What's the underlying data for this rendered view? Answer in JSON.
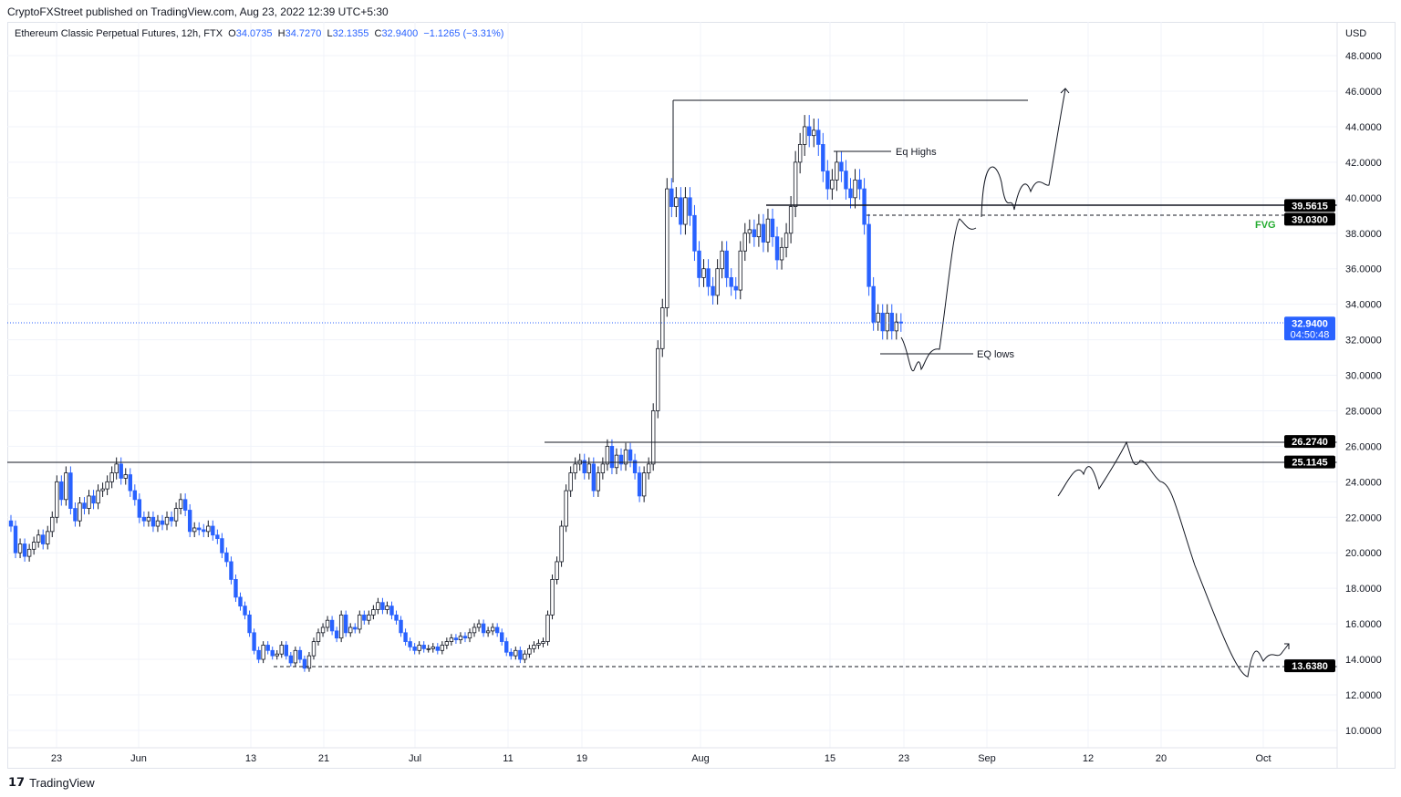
{
  "publisher_line": "CryptoFXStreet published on TradingView.com, Aug 23, 2022 12:39 UTC+5:30",
  "legend": {
    "symbol": "Ethereum Classic Perpetual Futures, 12h, FTX",
    "open_label": "O",
    "open": "34.0735",
    "high_label": "H",
    "high": "34.7270",
    "low_label": "L",
    "low": "32.1355",
    "close_label": "C",
    "close": "32.9400",
    "change": "−1.1265 (−3.31%)"
  },
  "footer": {
    "brand": "TradingView"
  },
  "annotations": {
    "eq_highs": "Eq Highs",
    "eq_lows": "EQ lows",
    "fvg": "FVG"
  },
  "colors": {
    "bull_fill": "#ffffff",
    "bull_border": "#131722",
    "bear": "#2962ff",
    "fvg": "#22ab2e",
    "last_price": "#2962ff"
  },
  "chart_data": {
    "type": "candlestick",
    "interval": "12h",
    "currency_label": "USD",
    "ylim": [
      9,
      50
    ],
    "y_ticks": [
      "10.0000",
      "12.0000",
      "14.0000",
      "16.0000",
      "18.0000",
      "20.0000",
      "22.0000",
      "24.0000",
      "26.0000",
      "28.0000",
      "30.0000",
      "32.0000",
      "34.0000",
      "36.0000",
      "38.0000",
      "40.0000",
      "42.0000",
      "44.0000",
      "46.0000",
      "48.0000"
    ],
    "x_ticks": [
      "23",
      "Jun",
      "13",
      "21",
      "Jul",
      "11",
      "19",
      "Aug",
      "15",
      "23",
      "Sep",
      "12",
      "20",
      "Oct"
    ],
    "first_candle": "May 18",
    "closes": [
      21.5,
      20,
      20.5,
      19.8,
      20.2,
      20.6,
      21,
      20.5,
      21.2,
      22,
      24,
      23,
      24.5,
      22.5,
      21.8,
      22.8,
      22.5,
      23.2,
      22.8,
      23.5,
      23.6,
      24,
      24.5,
      25,
      24.2,
      24.4,
      23.5,
      23,
      22,
      21.8,
      22,
      21.5,
      21.8,
      21.6,
      22,
      21.8,
      22.5,
      23,
      22.4,
      21.2,
      21.4,
      21.3,
      21.2,
      21.5,
      21,
      20.8,
      20,
      19.5,
      18.5,
      17.5,
      17,
      16.5,
      15.5,
      14.5,
      14,
      14.8,
      14.5,
      14.2,
      14.3,
      14.8,
      14.2,
      13.8,
      14.5,
      14,
      13.5,
      14.2,
      15,
      15.5,
      15.8,
      16.2,
      15.6,
      15.2,
      16.5,
      15.5,
      15.8,
      15.7,
      16.5,
      16.2,
      16.5,
      16.8,
      17.2,
      16.8,
      17,
      16.5,
      16.2,
      15.5,
      15,
      14.7,
      14.5,
      14.8,
      14.6,
      14.6,
      14.7,
      14.5,
      14.8,
      15,
      15.2,
      15.1,
      15.3,
      15.2,
      15.5,
      15.8,
      16,
      15.5,
      15.6,
      15.8,
      15.5,
      15,
      14.4,
      14.2,
      14.5,
      14,
      14.3,
      14.6,
      14.8,
      14.9,
      15,
      16.5,
      18.5,
      19.5,
      21.5,
      23.5,
      24.5,
      25,
      25.2,
      24.5,
      25,
      23.5,
      24.5,
      25,
      26,
      24.8,
      25.5,
      25,
      25.8,
      25.2,
      24.5,
      23.2,
      24.5,
      25,
      28,
      31.5,
      33.8,
      40.5,
      39.5,
      40,
      38.5,
      40,
      39,
      37,
      35.5,
      36,
      35,
      34.5,
      36,
      37,
      35.5,
      35,
      34.8,
      37,
      38,
      38.2,
      37.8,
      38.5,
      37.5,
      38.8,
      37.8,
      36.5,
      37.2,
      38,
      39.5,
      42,
      43,
      44,
      43.5,
      43.8,
      43,
      41.5,
      40.5,
      41,
      42,
      41.5,
      40.5,
      40,
      41,
      40.5,
      38.5,
      35,
      33,
      33.5,
      32.5,
      33.5,
      32.5,
      33,
      32.94
    ],
    "price_labels": [
      {
        "value": "39.5615",
        "style": "dark"
      },
      {
        "value": "39.0300",
        "style": "dark"
      },
      {
        "value": "32.9400",
        "sub": "04:50:48",
        "style": "blue"
      },
      {
        "value": "26.2740",
        "style": "dark"
      },
      {
        "value": "25.1145",
        "style": "dark"
      },
      {
        "value": "13.6380",
        "style": "dark"
      }
    ]
  }
}
